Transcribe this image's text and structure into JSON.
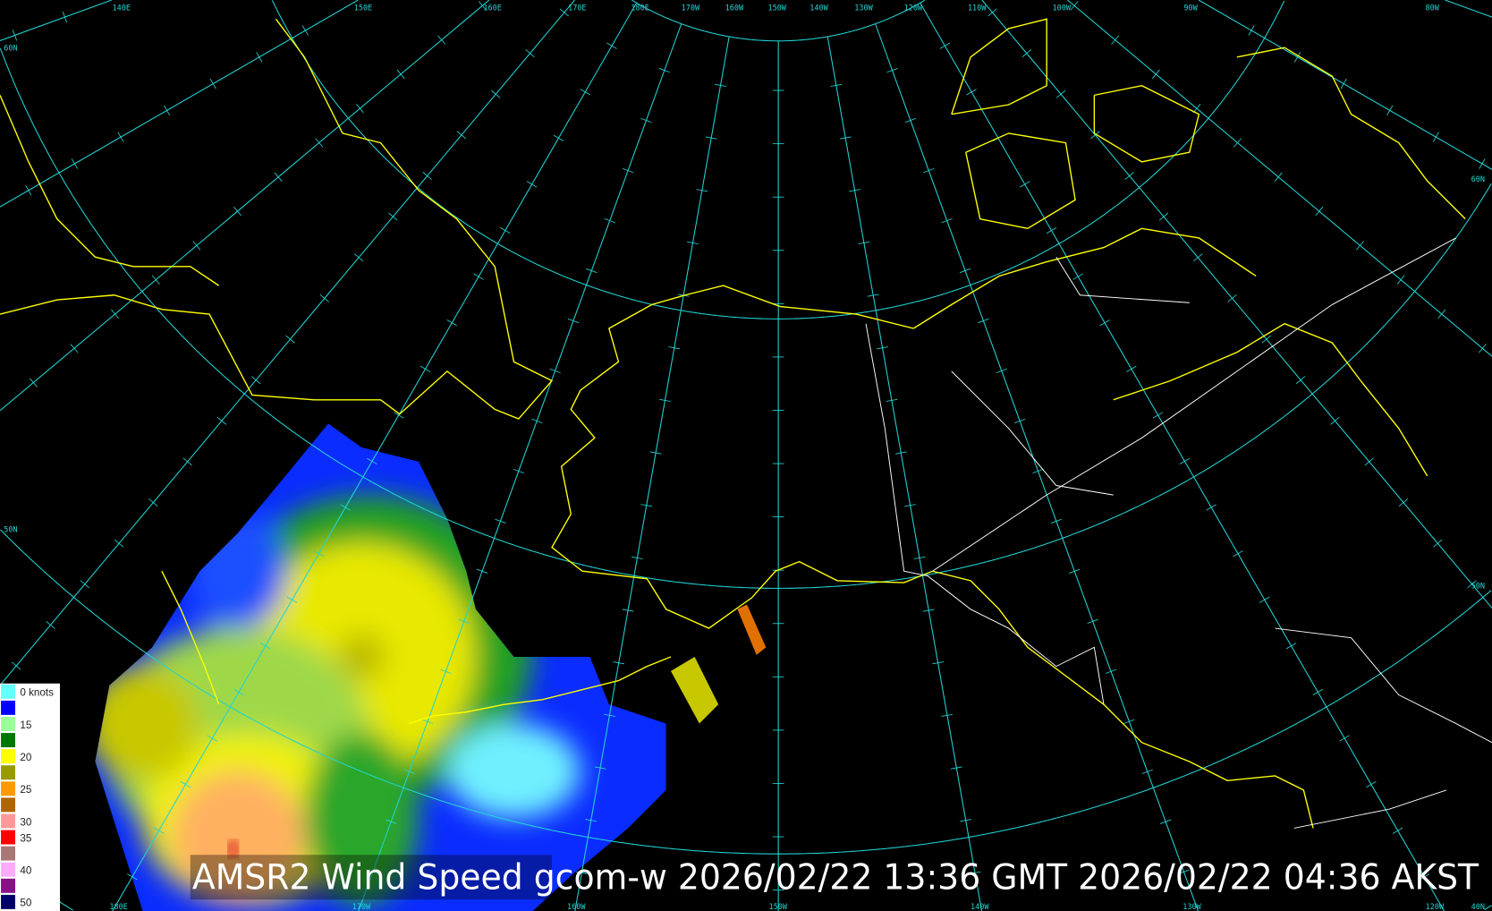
{
  "title": "AMSR2 Wind Speed gcom-w 2026/02/22 13:36 GMT 2026/02/22 04:36 AKST",
  "colors": {
    "background": "#000000",
    "graticule": "#22d3d3",
    "coastline": "#ffff00",
    "borders": "#ffffff"
  },
  "graticule_labels": {
    "top": [
      "140E",
      "150E",
      "160E",
      "170E",
      "180E",
      "170W",
      "160W",
      "150W",
      "140W",
      "130W",
      "120W",
      "110W",
      "100W",
      "90W",
      "80W"
    ],
    "bottom": [
      "180E",
      "170W",
      "160W",
      "150W",
      "140W",
      "130W",
      "120W",
      "40N"
    ],
    "left": [
      "60N",
      "50N"
    ],
    "right": [
      "60N",
      "50N"
    ]
  },
  "legend": {
    "unit_label": "0 knots",
    "items": [
      {
        "color": "#66ffff",
        "label": "0 knots"
      },
      {
        "color": "#0000ff",
        "label": ""
      },
      {
        "color": "#99ff99",
        "label": "15"
      },
      {
        "color": "#007700",
        "label": ""
      },
      {
        "color": "#ffff00",
        "label": "20"
      },
      {
        "color": "#999900",
        "label": ""
      },
      {
        "color": "#ff9900",
        "label": "25"
      },
      {
        "color": "#b06600",
        "label": ""
      },
      {
        "color": "#ff9999",
        "label": "30"
      },
      {
        "color": "#ff0000",
        "label": "35"
      },
      {
        "color": "#aa7777",
        "label": ""
      },
      {
        "color": "#ffaaff",
        "label": "40"
      },
      {
        "color": "#881188",
        "label": ""
      },
      {
        "color": "#000066",
        "label": "50"
      }
    ]
  }
}
